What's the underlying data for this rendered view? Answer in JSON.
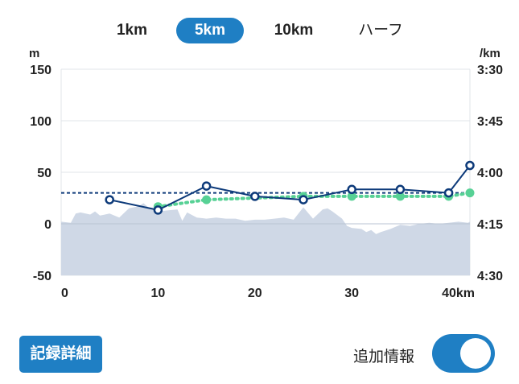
{
  "tabs": [
    {
      "label": "1km",
      "active": false
    },
    {
      "label": "5km",
      "active": true
    },
    {
      "label": "10km",
      "active": false
    },
    {
      "label": "ハーフ",
      "active": false
    }
  ],
  "buttons": {
    "detail": "記録詳細"
  },
  "toggle": {
    "label": "追加情報",
    "on": true
  },
  "colors": {
    "accent": "#1f7fc4",
    "line": "#0d3a7a",
    "average": "#57d195",
    "elevation": "#cfd8e6"
  },
  "chart_data": {
    "type": "line",
    "xlabel": "km",
    "x_ticks": [
      "0",
      "10",
      "20",
      "30",
      "40km"
    ],
    "xlim": [
      0,
      42.195
    ],
    "left_axis": {
      "unit": "m",
      "ticks": [
        "150",
        "100",
        "50",
        "0",
        "-50"
      ],
      "range": [
        -50,
        150
      ]
    },
    "right_axis": {
      "unit": "/km",
      "ticks": [
        "3:30",
        "3:45",
        "4:00",
        "4:15",
        "4:30"
      ],
      "range_seconds": [
        210,
        270
      ]
    },
    "series": [
      {
        "kind": "pace_per_5km",
        "x": [
          5,
          10,
          15,
          20,
          25,
          30,
          35,
          40,
          42.195
        ],
        "pace": [
          "4:08",
          "4:11",
          "4:04",
          "4:07",
          "4:08",
          "4:05",
          "4:05",
          "4:06",
          "3:58"
        ]
      },
      {
        "kind": "cumulative_average_pace",
        "x": [
          10,
          15,
          25,
          30,
          35,
          40,
          42.195
        ],
        "pace": [
          "4:10",
          "4:08",
          "4:07",
          "4:07",
          "4:07",
          "4:07",
          "4:06"
        ]
      },
      {
        "kind": "overall_average_pace",
        "value": "4:06"
      },
      {
        "kind": "elevation",
        "unit": "m",
        "x": [
          0,
          1,
          1.5,
          2,
          3,
          3.5,
          4,
          5,
          6,
          7,
          8,
          8.5,
          9,
          10,
          11,
          12,
          12.5,
          13,
          14,
          15,
          16,
          17,
          18,
          19,
          20,
          21,
          22,
          23,
          24,
          25,
          26,
          27,
          27.5,
          28,
          29,
          29.5,
          30,
          31,
          31.5,
          32,
          32.5,
          33,
          34,
          35,
          36,
          37,
          38,
          39,
          40,
          41,
          42,
          42.195
        ],
        "y": [
          2,
          1,
          10,
          11,
          9,
          12,
          8,
          10,
          6,
          15,
          17,
          20,
          16,
          12,
          13,
          14,
          3,
          11,
          6,
          5,
          6,
          5,
          5,
          3,
          4,
          4,
          5,
          6,
          4,
          16,
          5,
          14,
          15,
          12,
          5,
          -2,
          -4,
          -5,
          -8,
          -6,
          -10,
          -8,
          -5,
          -1,
          -2,
          0,
          1,
          0,
          1,
          2,
          1,
          2
        ]
      }
    ]
  }
}
